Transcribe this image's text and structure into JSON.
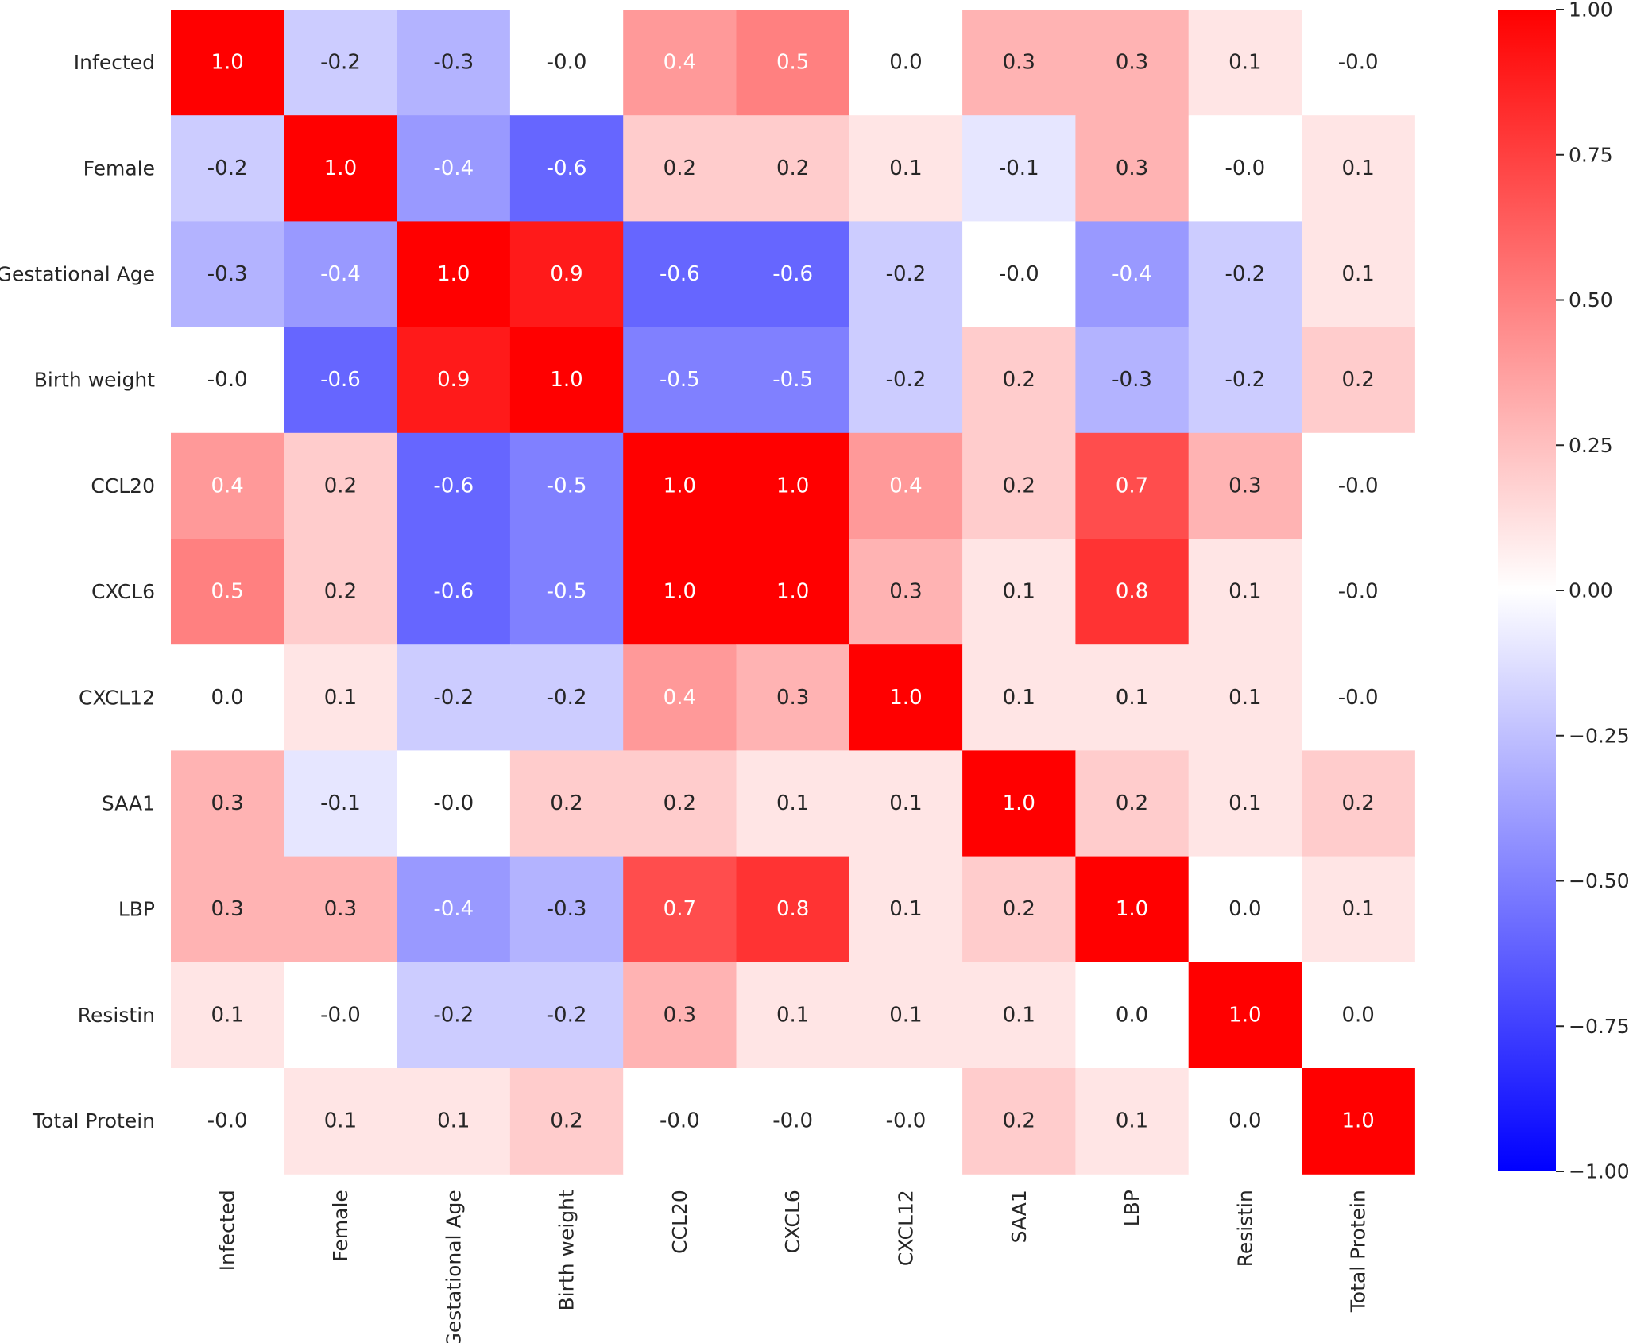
{
  "chart_data": {
    "type": "heatmap",
    "title": "",
    "xlabel": "",
    "ylabel": "",
    "variables": [
      "Infected",
      "Female",
      "Gestational Age",
      "Birth weight",
      "CCL20",
      "CXCL6",
      "CXCL12",
      "SAA1",
      "LBP",
      "Resistin",
      "Total Protein"
    ],
    "values": [
      [
        1.0,
        -0.2,
        -0.3,
        -0.0,
        0.4,
        0.5,
        0.0,
        0.3,
        0.3,
        0.1,
        -0.0
      ],
      [
        -0.2,
        1.0,
        -0.4,
        -0.6,
        0.2,
        0.2,
        0.1,
        -0.1,
        0.3,
        -0.0,
        0.1
      ],
      [
        -0.3,
        -0.4,
        1.0,
        0.9,
        -0.6,
        -0.6,
        -0.2,
        -0.0,
        -0.4,
        -0.2,
        0.1
      ],
      [
        -0.0,
        -0.6,
        0.9,
        1.0,
        -0.5,
        -0.5,
        -0.2,
        0.2,
        -0.3,
        -0.2,
        0.2
      ],
      [
        0.4,
        0.2,
        -0.6,
        -0.5,
        1.0,
        1.0,
        0.4,
        0.2,
        0.7,
        0.3,
        -0.0
      ],
      [
        0.5,
        0.2,
        -0.6,
        -0.5,
        1.0,
        1.0,
        0.3,
        0.1,
        0.8,
        0.1,
        -0.0
      ],
      [
        0.0,
        0.1,
        -0.2,
        -0.2,
        0.4,
        0.3,
        1.0,
        0.1,
        0.1,
        0.1,
        -0.0
      ],
      [
        0.3,
        -0.1,
        -0.0,
        0.2,
        0.2,
        0.1,
        0.1,
        1.0,
        0.2,
        0.1,
        0.2
      ],
      [
        0.3,
        0.3,
        -0.4,
        -0.3,
        0.7,
        0.8,
        0.1,
        0.2,
        1.0,
        0.0,
        0.1
      ],
      [
        0.1,
        -0.0,
        -0.2,
        -0.2,
        0.3,
        0.1,
        0.1,
        0.1,
        0.0,
        1.0,
        0.0
      ],
      [
        -0.0,
        0.1,
        0.1,
        0.2,
        -0.0,
        -0.0,
        -0.0,
        0.2,
        0.1,
        0.0,
        1.0
      ]
    ],
    "value_labels": [
      [
        "1.0",
        "-0.2",
        "-0.3",
        "-0.0",
        "0.4",
        "0.5",
        "0.0",
        "0.3",
        "0.3",
        "0.1",
        "-0.0"
      ],
      [
        "-0.2",
        "1.0",
        "-0.4",
        "-0.6",
        "0.2",
        "0.2",
        "0.1",
        "-0.1",
        "0.3",
        "-0.0",
        "0.1"
      ],
      [
        "-0.3",
        "-0.4",
        "1.0",
        "0.9",
        "-0.6",
        "-0.6",
        "-0.2",
        "-0.0",
        "-0.4",
        "-0.2",
        "0.1"
      ],
      [
        "-0.0",
        "-0.6",
        "0.9",
        "1.0",
        "-0.5",
        "-0.5",
        "-0.2",
        "0.2",
        "-0.3",
        "-0.2",
        "0.2"
      ],
      [
        "0.4",
        "0.2",
        "-0.6",
        "-0.5",
        "1.0",
        "1.0",
        "0.4",
        "0.2",
        "0.7",
        "0.3",
        "-0.0"
      ],
      [
        "0.5",
        "0.2",
        "-0.6",
        "-0.5",
        "1.0",
        "1.0",
        "0.3",
        "0.1",
        "0.8",
        "0.1",
        "-0.0"
      ],
      [
        "0.0",
        "0.1",
        "-0.2",
        "-0.2",
        "0.4",
        "0.3",
        "1.0",
        "0.1",
        "0.1",
        "0.1",
        "-0.0"
      ],
      [
        "0.3",
        "-0.1",
        "-0.0",
        "0.2",
        "0.2",
        "0.1",
        "0.1",
        "1.0",
        "0.2",
        "0.1",
        "0.2"
      ],
      [
        "0.3",
        "0.3",
        "-0.4",
        "-0.3",
        "0.7",
        "0.8",
        "0.1",
        "0.2",
        "1.0",
        "0.0",
        "0.1"
      ],
      [
        "0.1",
        "-0.0",
        "-0.2",
        "-0.2",
        "0.3",
        "0.1",
        "0.1",
        "0.1",
        "0.0",
        "1.0",
        "0.0"
      ],
      [
        "-0.0",
        "0.1",
        "0.1",
        "0.2",
        "-0.0",
        "-0.0",
        "-0.0",
        "0.2",
        "0.1",
        "0.0",
        "1.0"
      ]
    ],
    "colormap": {
      "name": "bwr",
      "low_color": "#0000ff",
      "mid_color": "#ffffff",
      "high_color": "#ff0000"
    },
    "value_range": [
      -1.0,
      1.0
    ],
    "colorbar": {
      "ticks": [
        1.0,
        0.75,
        0.5,
        0.25,
        0.0,
        -0.25,
        -0.5,
        -0.75,
        -1.0
      ],
      "tick_labels": [
        "1.00",
        "0.75",
        "0.50",
        "0.25",
        "0.00",
        "−0.25",
        "−0.50",
        "−0.75",
        "−1.00"
      ]
    },
    "annot_dark_text_color": "#262626",
    "annot_light_text_color": "#ffffff",
    "grid": false
  }
}
